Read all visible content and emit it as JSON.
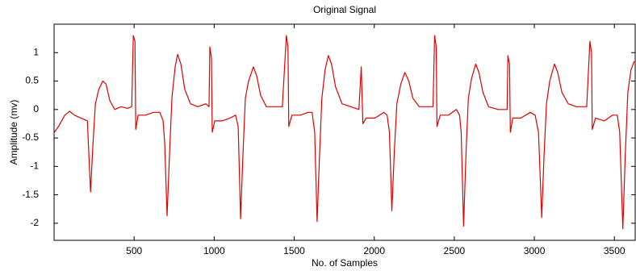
{
  "chart_data": {
    "type": "line",
    "title": "Original Signal",
    "x_label": "No. of Samples",
    "y_label": "Amplitude (mv)",
    "xlim": [
      0,
      3630
    ],
    "ylim": [
      -2.3,
      1.5
    ],
    "xticks": [
      500,
      1000,
      1500,
      2000,
      2500,
      3000,
      3500
    ],
    "yticks": [
      -2,
      -1.5,
      -1,
      -0.5,
      0,
      0.5,
      1
    ],
    "series": [
      {
        "color": "#e00000",
        "x": [
          2,
          27,
          67,
          97,
          127,
          168,
          208,
          213,
          228,
          243,
          258,
          279,
          304,
          324,
          349,
          379,
          419,
          459,
          485,
          495,
          505,
          510,
          525,
          570,
          621,
          661,
          681,
          691,
          706,
          721,
          736,
          756,
          772,
          792,
          817,
          852,
          898,
          948,
          968,
          973,
          983,
          988,
          1004,
          1049,
          1099,
          1134,
          1150,
          1165,
          1180,
          1195,
          1215,
          1245,
          1265,
          1290,
          1326,
          1376,
          1426,
          1451,
          1461,
          1466,
          1486,
          1537,
          1587,
          1612,
          1628,
          1643,
          1658,
          1673,
          1693,
          1713,
          1733,
          1758,
          1799,
          1854,
          1904,
          1919,
          1929,
          1949,
          2005,
          2060,
          2080,
          2095,
          2110,
          2126,
          2141,
          2166,
          2191,
          2216,
          2241,
          2281,
          2332,
          2367,
          2377,
          2387,
          2392,
          2412,
          2463,
          2513,
          2533,
          2543,
          2558,
          2573,
          2588,
          2608,
          2634,
          2654,
          2679,
          2714,
          2774,
          2830,
          2835,
          2845,
          2850,
          2865,
          2915,
          2975,
          3005,
          3026,
          3046,
          3061,
          3076,
          3096,
          3126,
          3146,
          3172,
          3212,
          3262,
          3327,
          3347,
          3357,
          3362,
          3382,
          3438,
          3488,
          3518,
          3533,
          3553,
          3568,
          3584,
          3604,
          3624
        ],
        "values": [
          -0.4,
          -0.3,
          -0.1,
          -0.03,
          -0.1,
          -0.15,
          -0.2,
          -0.5,
          -1.45,
          -0.6,
          0.1,
          0.35,
          0.5,
          0.45,
          0.15,
          0.0,
          0.05,
          0.02,
          0.05,
          1.3,
          1.2,
          -0.35,
          -0.1,
          -0.1,
          -0.05,
          -0.05,
          -0.2,
          -0.6,
          -1.87,
          -0.8,
          0.2,
          0.75,
          0.97,
          0.8,
          0.35,
          0.1,
          0.05,
          0.1,
          0.05,
          1.1,
          0.9,
          -0.4,
          -0.2,
          -0.2,
          -0.15,
          -0.1,
          -0.3,
          -1.92,
          -0.8,
          0.2,
          0.5,
          0.75,
          0.6,
          0.25,
          0.05,
          0.05,
          0.05,
          1.3,
          1.1,
          -0.3,
          -0.1,
          -0.1,
          -0.05,
          -0.05,
          -0.4,
          -1.97,
          -0.8,
          0.2,
          0.7,
          0.95,
          0.8,
          0.4,
          0.1,
          0.05,
          0.0,
          0.75,
          -0.25,
          -0.15,
          -0.15,
          -0.05,
          -0.1,
          -0.4,
          -1.78,
          -0.7,
          0.1,
          0.45,
          0.65,
          0.5,
          0.2,
          0.05,
          0.05,
          0.05,
          1.3,
          1.1,
          -0.3,
          -0.1,
          -0.1,
          0.0,
          -0.1,
          -0.4,
          -2.05,
          -0.8,
          0.2,
          0.55,
          0.8,
          0.65,
          0.3,
          0.05,
          0.0,
          0.0,
          0.95,
          0.8,
          -0.4,
          -0.15,
          -0.15,
          -0.05,
          -0.1,
          -0.4,
          -1.9,
          -0.8,
          0.1,
          0.5,
          0.8,
          0.65,
          0.3,
          0.1,
          0.05,
          0.05,
          1.2,
          1.0,
          -0.35,
          -0.15,
          -0.2,
          -0.1,
          -0.1,
          -0.4,
          -2.1,
          -0.8,
          0.3,
          0.7,
          0.85
        ]
      }
    ]
  }
}
